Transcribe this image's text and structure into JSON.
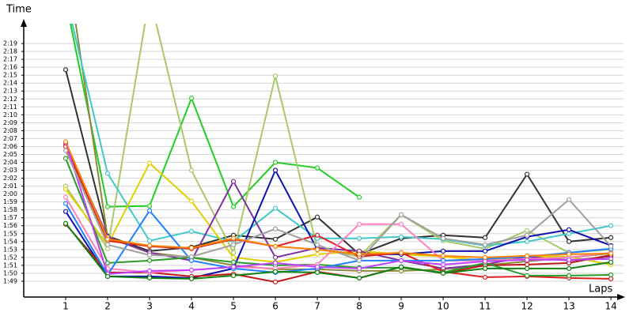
{
  "chart_data": {
    "type": "line",
    "x_label": "Laps",
    "y_label": "Time",
    "xlim": [
      0,
      14.3
    ],
    "xticks": [
      1,
      2,
      3,
      4,
      5,
      6,
      7,
      8,
      9,
      10,
      11,
      12,
      13,
      14
    ],
    "ylim": [
      107,
      141.5
    ],
    "yticks": [
      {
        "value": 109,
        "label": "1:49"
      },
      {
        "value": 110,
        "label": "1:50"
      },
      {
        "value": 111,
        "label": "1:51"
      },
      {
        "value": 112,
        "label": "1:52"
      },
      {
        "value": 113,
        "label": "1:53"
      },
      {
        "value": 114,
        "label": "1:54"
      },
      {
        "value": 115,
        "label": "1:55"
      },
      {
        "value": 116,
        "label": "1:56"
      },
      {
        "value": 117,
        "label": "1:57"
      },
      {
        "value": 118,
        "label": "1:58"
      },
      {
        "value": 119,
        "label": "1:59"
      },
      {
        "value": 120,
        "label": "2:00"
      },
      {
        "value": 121,
        "label": "2:01"
      },
      {
        "value": 122,
        "label": "2:02"
      },
      {
        "value": 123,
        "label": "2:03"
      },
      {
        "value": 124,
        "label": "2:04"
      },
      {
        "value": 125,
        "label": "2:05"
      },
      {
        "value": 126,
        "label": "2:06"
      },
      {
        "value": 127,
        "label": "2:07"
      },
      {
        "value": 128,
        "label": "2:08"
      },
      {
        "value": 129,
        "label": "2:09"
      },
      {
        "value": 130,
        "label": "2:10"
      },
      {
        "value": 131,
        "label": "2:11"
      },
      {
        "value": 132,
        "label": "2:12"
      },
      {
        "value": 133,
        "label": "2:13"
      },
      {
        "value": 134,
        "label": "2:14"
      },
      {
        "value": 135,
        "label": "2:15"
      },
      {
        "value": 136,
        "label": "2:16"
      },
      {
        "value": 137,
        "label": "2:17"
      },
      {
        "value": 138,
        "label": "2:18"
      },
      {
        "value": 139,
        "label": "2:19"
      }
    ],
    "grid": true,
    "x": [
      1,
      2,
      3,
      4,
      5,
      6,
      7,
      8,
      9,
      10,
      11,
      12,
      13,
      14
    ],
    "series": [
      {
        "color": "#333333",
        "values": [
          135.7,
          114.7,
          112.8,
          113.3,
          114.8,
          114.3,
          117.1,
          112.4,
          114.4,
          114.8,
          114.5,
          122.5,
          114,
          114.5
        ]
      },
      {
        "color": "#22cc22",
        "values": [
          144.5,
          118.4,
          118.5,
          132.1,
          118.4,
          124,
          123.3,
          119.6,
          null,
          null,
          null,
          null,
          null,
          null
        ]
      },
      {
        "color": "#a8c86a",
        "values": [
          121,
          113.1,
          145,
          123,
          112.6,
          134.9,
          113.1,
          112.1,
          117.4,
          114.1,
          113.1,
          115.4,
          112.6,
          113
        ]
      },
      {
        "color": "#8b8b3a",
        "values": [
          150,
          114.5,
          112.6,
          112,
          111,
          110.5,
          110.5,
          110.3,
          110.3,
          110.5,
          111,
          111.5,
          112,
          112.5
        ]
      },
      {
        "color": "#40c8c8",
        "values": [
          145,
          122.6,
          114.1,
          115.3,
          114,
          118.2,
          114.4,
          114.4,
          114.6,
          114.3,
          113.5,
          114,
          115,
          116
        ]
      },
      {
        "color": "#e0d000",
        "values": [
          120.6,
          113.6,
          123.9,
          119.1,
          112,
          111.4,
          112.4,
          112.8,
          112.4,
          112.1,
          111.6,
          112.1,
          112.1,
          111.1
        ]
      },
      {
        "color": "#8030a0",
        "values": [
          126.3,
          114.6,
          112.6,
          111.6,
          121.6,
          112,
          113.2,
          112.8,
          111.6,
          110.6,
          111.1,
          112.1,
          111.6,
          112.1
        ]
      },
      {
        "color": "#1010b0",
        "values": [
          117.8,
          109.6,
          109.6,
          109.4,
          110.6,
          123,
          113,
          112.4,
          112.4,
          112.8,
          112.8,
          114.6,
          115.5,
          113.5
        ]
      },
      {
        "color": "#e02020",
        "values": [
          126,
          114.1,
          113.4,
          113.1,
          114.3,
          113.4,
          114.8,
          112.1,
          112.6,
          110.2,
          109.5,
          109.6,
          109.4,
          109.3
        ]
      },
      {
        "color": "#c01818",
        "values": [
          116.2,
          110.1,
          110.1,
          109.6,
          109.9,
          108.9,
          110.2,
          109.4,
          110.8,
          110,
          111,
          111.1,
          111.3,
          112.3
        ]
      },
      {
        "color": "#2a9a2a",
        "values": [
          124.5,
          111.3,
          111.6,
          112,
          111.4,
          111,
          111.1,
          110.7,
          110.7,
          110.1,
          111.3,
          109.7,
          109.7,
          109.8
        ]
      },
      {
        "color": "#ff80c0",
        "values": [
          119.6,
          110.6,
          110.1,
          110.4,
          110.8,
          110.6,
          111.1,
          116.2,
          116.2,
          111.6,
          111.6,
          111.8,
          112,
          112.6
        ]
      },
      {
        "color": "#2080ff",
        "values": [
          118.8,
          109.8,
          117.9,
          111.6,
          110.6,
          110.1,
          110.6,
          111.6,
          111.6,
          111.6,
          111.8,
          112.1,
          112.6,
          113.1
        ]
      },
      {
        "color": "#c040ff",
        "values": [
          126.5,
          109.9,
          110.3,
          110.4,
          110.8,
          111.3,
          110.8,
          110.6,
          111.6,
          111.1,
          111.5,
          111.7,
          111.7,
          111.8
        ]
      },
      {
        "color": "#a0a0a0",
        "values": [
          125.5,
          113.6,
          112.3,
          112.1,
          113.6,
          115.6,
          113.6,
          111.6,
          117.4,
          114.4,
          113.6,
          114.8,
          119.3,
          113.4
        ]
      },
      {
        "color": "#108010",
        "values": [
          116.3,
          109.6,
          109.4,
          109.3,
          109.7,
          110.2,
          110.1,
          109.4,
          110.8,
          110,
          110.6,
          110.6,
          110.6,
          111.4
        ]
      },
      {
        "color": "#ff8000",
        "values": [
          126.6,
          114.3,
          113.5,
          113.2,
          114.4,
          113.4,
          113,
          112.4,
          112.6,
          112.2,
          112,
          112.2,
          112.4,
          112.5
        ]
      }
    ]
  }
}
